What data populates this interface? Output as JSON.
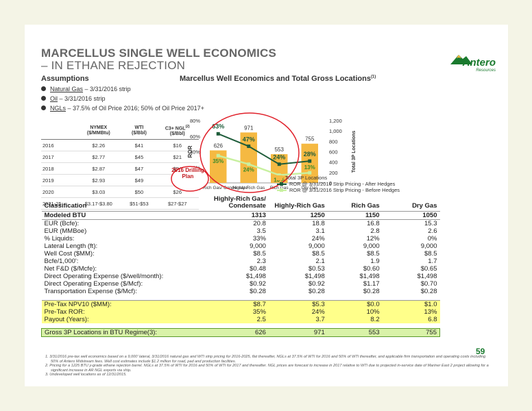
{
  "title": {
    "line1": "MARCELLUS SINGLE WELL ECONOMICS",
    "line2": "– IN ETHANE REJECTION"
  },
  "logo": {
    "name": "Antero",
    "sub": "Resources"
  },
  "assumptions": {
    "heading": "Assumptions",
    "bullets": [
      {
        "key": "Natural Gas",
        "text": " – 3/31/2016 strip"
      },
      {
        "key": "Oil",
        "text": " – 3/31/2016 strip"
      },
      {
        "key": "NGLs",
        "text": " – 37.5% of Oil Price 2016; 50% of Oil Price 2017+"
      }
    ],
    "price_table": {
      "headers": [
        "",
        "NYMEX ($/MMBtu)",
        "WTI ($/Bbl)",
        "C3+ NGL(2) ($/Bbl)"
      ],
      "rows": [
        [
          "2016",
          "$2.26",
          "$41",
          "$16"
        ],
        [
          "2017",
          "$2.77",
          "$45",
          "$21"
        ],
        [
          "2018",
          "$2.87",
          "$47",
          "$24"
        ],
        [
          "2019",
          "$2.93",
          "$49",
          "$25"
        ],
        [
          "2020",
          "$3.03",
          "$50",
          "$26"
        ],
        [
          "2021-25",
          "$3.17-$3.80",
          "$51-$53",
          "$27-$27"
        ]
      ]
    }
  },
  "chart_title": "Marcellus Well Economics and Total Gross Locations",
  "chart_title_sup": "(1)",
  "drilling_note": "2016 Drilling Plan",
  "chart_data": {
    "type": "bar",
    "categories": [
      "Highly-Rich Gas/ Condensate",
      "Highly-Rich Gas",
      "Rich Gas",
      "Dry Gas"
    ],
    "series": [
      {
        "name": "Total 3P Locations",
        "kind": "bar",
        "axis": "right",
        "values": [
          626,
          971,
          553,
          755
        ],
        "color": "#f5b942"
      },
      {
        "name": "ROR @ 3/31/2016 Strip Pricing - After Hedges",
        "kind": "line",
        "axis": "left",
        "values": [
          63,
          47,
          24,
          28
        ],
        "color": "#1e5c3a"
      },
      {
        "name": "ROR @ 3/31/2016 Strip Pricing - Before Hedges",
        "kind": "line",
        "axis": "left",
        "values": [
          35,
          24,
          10,
          13
        ],
        "color": "#c8f0a0"
      }
    ],
    "y_left": {
      "label": "ROR",
      "ticks": [
        "0%",
        "20%",
        "40%",
        "60%",
        "80%"
      ],
      "range": [
        0,
        80
      ]
    },
    "y_right": {
      "label": "Total 3P Locations",
      "ticks": [
        "0",
        "200",
        "400",
        "600",
        "800",
        "1,000",
        "1,200"
      ],
      "range": [
        0,
        1200
      ]
    },
    "bar_labels": [
      "626",
      "971",
      "553",
      "755"
    ],
    "after_labels": [
      "63%",
      "47%",
      "24%",
      "28%"
    ],
    "before_labels": [
      "35%",
      "24%",
      "10%",
      "13%"
    ],
    "legend": [
      "Total 3P Locations",
      "ROR @ 3/31/2016 Strip Pricing - After Hedges",
      "ROR @ 3/31/2016 Strip Pricing - Before Hedges"
    ]
  },
  "econ_table": {
    "headers": [
      "Classification",
      "Highly-Rich Gas/ Condensate",
      "Highly-Rich Gas",
      "Rich Gas",
      "Dry Gas"
    ],
    "btu_row": [
      "Modeled BTU",
      "1313",
      "1250",
      "1150",
      "1050"
    ],
    "rows": [
      [
        "EUR (Bcfe):",
        "20.8",
        "18.8",
        "16.8",
        "15.3"
      ],
      [
        "EUR (MMBoe)",
        "3.5",
        "3.1",
        "2.8",
        "2.6"
      ],
      [
        "% Liquids:",
        "33%",
        "24%",
        "12%",
        "0%"
      ],
      [
        "Lateral Length (ft):",
        "9,000",
        "9,000",
        "9,000",
        "9,000"
      ],
      [
        "Well Cost ($MM):",
        "$8.5",
        "$8.5",
        "$8.5",
        "$8.5"
      ],
      [
        "Bcfe/1,000':",
        "2.3",
        "2.1",
        "1.9",
        "1.7"
      ],
      [
        "Net F&D ($/Mcfe):",
        "$0.48",
        "$0.53",
        "$0.60",
        "$0.65"
      ],
      [
        "Direct Operating Expense ($/well/month):",
        "$1,498",
        "$1,498",
        "$1,498",
        "$1,498"
      ],
      [
        "Direct Operating Expense ($/Mcf):",
        "$0.92",
        "$0.92",
        "$1.17",
        "$0.70"
      ],
      [
        "Transportation Expense ($/Mcf):",
        "$0.28",
        "$0.28",
        "$0.28",
        "$0.28"
      ]
    ],
    "highlight_rows": [
      [
        "Pre-Tax NPV10 ($MM):",
        "$8.7",
        "$5.3",
        "$0.0",
        "$1.0"
      ],
      [
        "Pre-Tax ROR:",
        "35%",
        "24%",
        "10%",
        "13%"
      ],
      [
        "Payout (Years):",
        "2.5",
        "3.7",
        "8.2",
        "6.8"
      ]
    ],
    "gross_row": [
      "Gross 3P Locations in BTU Regime(3):",
      "626",
      "971",
      "553",
      "755"
    ]
  },
  "page_number": "59",
  "footnotes": [
    "1. 3/31/2016 pre-tax well economics based on a 9,000' lateral, 3/31/2016 natural gas and WTI strip pricing for 2016-2025, flat thereafter, NGLs at 37.5% of WTI for 2016 and 50% of WTI thereafter, and applicable firm transportation and operating costs including 50% of Antero Midstream fees. Well cost estimates include $1.2 million for road, pad and production facilities.",
    "2. Pricing for a 1225 BTU y-grade ethane rejection barrel. NGLs at 37.5% of WTI for 2016 and 50% of WTI for 2017 and thereafter. NGL prices are forecast to increase in 2017 relative to WTI due to projected in-service date of Mariner East 2 project allowing for a significant increase in AR NGL exports via ship.",
    "3. Undeveloped well locations as of 12/31/2015."
  ],
  "colors": {
    "title": "#666666",
    "accent_green": "#1a7a2e",
    "bar": "#f5b942",
    "after_line": "#1e5c3a",
    "before_line": "#c8f0a0",
    "highlight": "#ffff8a",
    "gross_row": "#d9f2a8",
    "circle": "#e0202a"
  }
}
